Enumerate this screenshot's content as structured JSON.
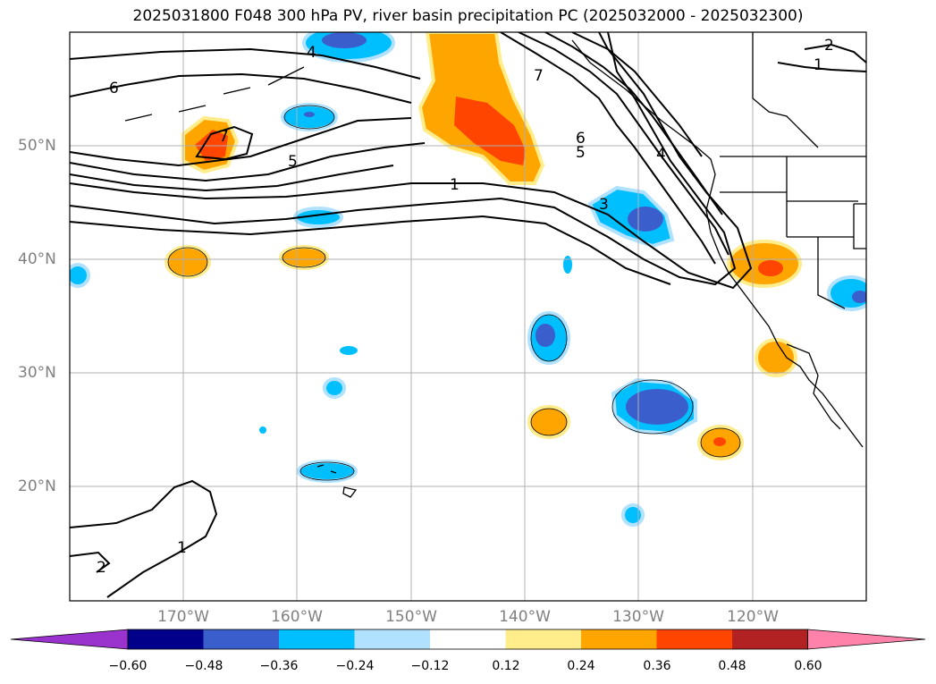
{
  "title": "2025031800 F048 300 hPa PV, river basin precipitation PC (2025032000 - 2025032300)",
  "map": {
    "lon_labels": [
      "170°W",
      "160°W",
      "150°W",
      "140°W",
      "130°W",
      "120°W"
    ],
    "lat_labels": [
      "50°N",
      "40°N",
      "30°N",
      "20°N"
    ],
    "pv_contour_labels": [
      "6",
      "7",
      "5",
      "1",
      "7",
      "6",
      "5",
      "4",
      "3",
      "2",
      "1",
      "4",
      "1",
      "2"
    ]
  },
  "colorbar": {
    "tick_labels": [
      "−0.60",
      "−0.48",
      "−0.36",
      "−0.24",
      "−0.12",
      "0.12",
      "0.24",
      "0.36",
      "0.48",
      "0.60"
    ],
    "colors": [
      "#9a32cd",
      "#00008b",
      "#3a5fcd",
      "#00bfff",
      "#b0e2ff",
      "#ffffff",
      "#ffec8b",
      "#ffa500",
      "#ff4500",
      "#b22222",
      "#ff82ab"
    ]
  }
}
